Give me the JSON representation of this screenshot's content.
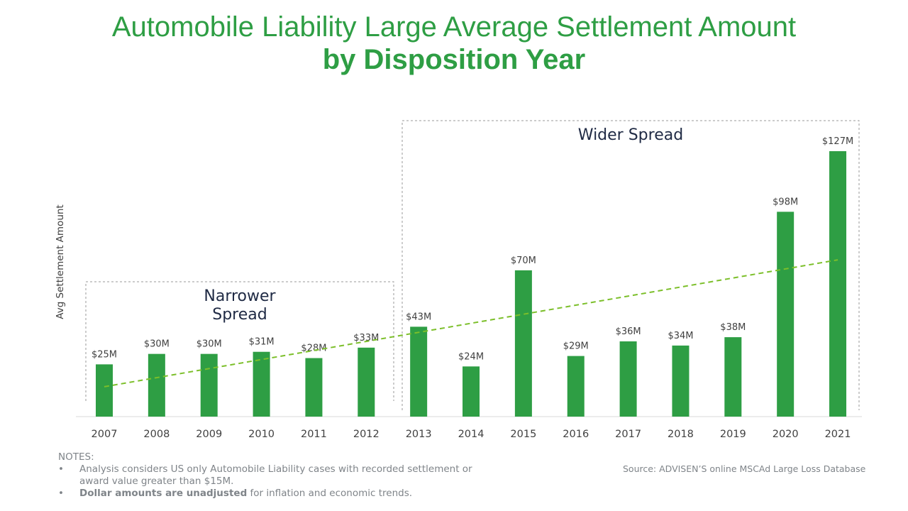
{
  "title_line1": "Automobile Liability Large Average Settlement Amount",
  "title_line2": "by Disposition Year",
  "chart_data": {
    "type": "bar",
    "ylabel": "Avg Settlement Amount",
    "xlabel": "",
    "categories": [
      "2007",
      "2008",
      "2009",
      "2010",
      "2011",
      "2012",
      "2013",
      "2014",
      "2015",
      "2016",
      "2017",
      "2018",
      "2019",
      "2020",
      "2021"
    ],
    "values": [
      25,
      30,
      30,
      31,
      28,
      33,
      43,
      24,
      70,
      29,
      36,
      34,
      38,
      98,
      127
    ],
    "data_labels": [
      "$25M",
      "$30M",
      "$30M",
      "$31M",
      "$28M",
      "$33M",
      "$43M",
      "$24M",
      "$70M",
      "$29M",
      "$36M",
      "$34M",
      "$38M",
      "$98M",
      "$127M"
    ],
    "unit": "$M",
    "ylim": [
      0,
      127
    ],
    "bar_color": "#2e9e44",
    "trendline": {
      "style": "dashed",
      "color": "#7cbf2a",
      "start": {
        "x": "2007",
        "y": 14.3
      },
      "end": {
        "x": "2021",
        "y": 75
      }
    },
    "annotations": [
      {
        "text": [
          "Narrower",
          "Spread"
        ],
        "range": [
          "2007",
          "2012"
        ]
      },
      {
        "text": [
          "Wider Spread"
        ],
        "range": [
          "2013",
          "2021"
        ]
      }
    ],
    "grid": false
  },
  "notes": {
    "heading": "NOTES:",
    "bullet1": "Analysis considers US only Automobile Liability cases with recorded settlement or award value greater than $15M.",
    "bullet2_bold": "Dollar amounts are unadjusted",
    "bullet2_rest": " for inflation and economic trends."
  },
  "source": "Source: ADVISEN’S online MSCAd Large Loss Database"
}
